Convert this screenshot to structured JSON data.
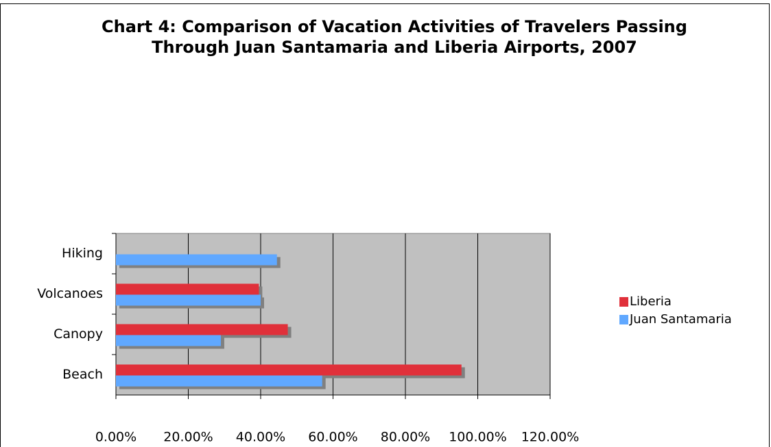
{
  "chart_data": {
    "type": "bar",
    "orientation": "horizontal",
    "title": "Chart 4: Comparison of Vacation Activities of Travelers Passing Through Juan Santamaria and Liberia Airports, 2007",
    "categories": [
      "Beach",
      "Canopy",
      "Volcanoes",
      "Hiking"
    ],
    "series": [
      {
        "name": "Liberia",
        "color": "#e0303a",
        "values": [
          95.5,
          47.5,
          39.5,
          null
        ]
      },
      {
        "name": "Juan Santamaria",
        "color": "#60a8ff",
        "values": [
          57,
          29,
          40,
          44.5
        ]
      }
    ],
    "xlim": [
      0,
      120
    ],
    "xticks": [
      {
        "value": 0,
        "label": "0.00%"
      },
      {
        "value": 20,
        "label": "20.00%"
      },
      {
        "value": 40,
        "label": "40.00%"
      },
      {
        "value": 60,
        "label": "60.00%"
      },
      {
        "value": 80,
        "label": "80.00%"
      },
      {
        "value": 100,
        "label": "100.00%"
      },
      {
        "value": 120,
        "label": "120.00%"
      }
    ],
    "grid": true,
    "legend": "right"
  }
}
